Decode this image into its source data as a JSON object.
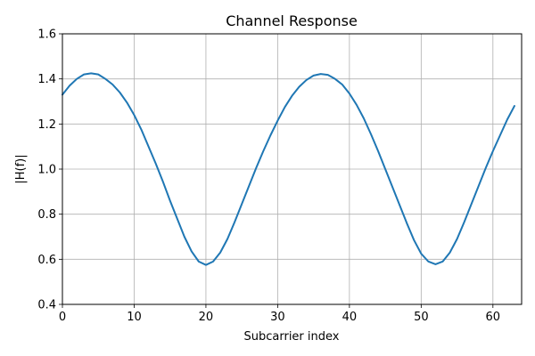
{
  "chart_data": {
    "type": "line",
    "title": "Channel Response",
    "xlabel": "Subcarrier index",
    "ylabel": "|H(f)|",
    "xlim": [
      0,
      64
    ],
    "ylim": [
      0.4,
      1.6
    ],
    "xticks": [
      "0",
      "10",
      "20",
      "30",
      "40",
      "50",
      "60"
    ],
    "yticks": [
      "0.4",
      "0.6",
      "0.8",
      "1.0",
      "1.2",
      "1.4",
      "1.6"
    ],
    "grid": true,
    "legend": "none",
    "series": [
      {
        "color": "#1f77b4",
        "x": [
          0,
          1,
          2,
          3,
          4,
          5,
          6,
          7,
          8,
          9,
          10,
          11,
          12,
          13,
          14,
          15,
          16,
          17,
          18,
          19,
          20,
          21,
          22,
          23,
          24,
          25,
          26,
          27,
          28,
          29,
          30,
          31,
          32,
          33,
          34,
          35,
          36,
          37,
          38,
          39,
          40,
          41,
          42,
          43,
          44,
          45,
          46,
          47,
          48,
          49,
          50,
          51,
          52,
          53,
          54,
          55,
          56,
          57,
          58,
          59,
          60,
          61,
          62,
          63
        ],
        "y": [
          1.33,
          1.37,
          1.4,
          1.42,
          1.425,
          1.42,
          1.4,
          1.375,
          1.34,
          1.295,
          1.24,
          1.175,
          1.1,
          1.025,
          0.945,
          0.86,
          0.78,
          0.7,
          0.635,
          0.59,
          0.575,
          0.59,
          0.63,
          0.69,
          0.765,
          0.845,
          0.925,
          1.005,
          1.08,
          1.15,
          1.215,
          1.275,
          1.325,
          1.365,
          1.395,
          1.415,
          1.422,
          1.418,
          1.4,
          1.375,
          1.335,
          1.285,
          1.225,
          1.155,
          1.08,
          1.0,
          0.92,
          0.84,
          0.76,
          0.685,
          0.625,
          0.59,
          0.578,
          0.59,
          0.63,
          0.69,
          0.765,
          0.845,
          0.925,
          1.005,
          1.08,
          1.15,
          1.22,
          1.28
        ]
      }
    ]
  }
}
